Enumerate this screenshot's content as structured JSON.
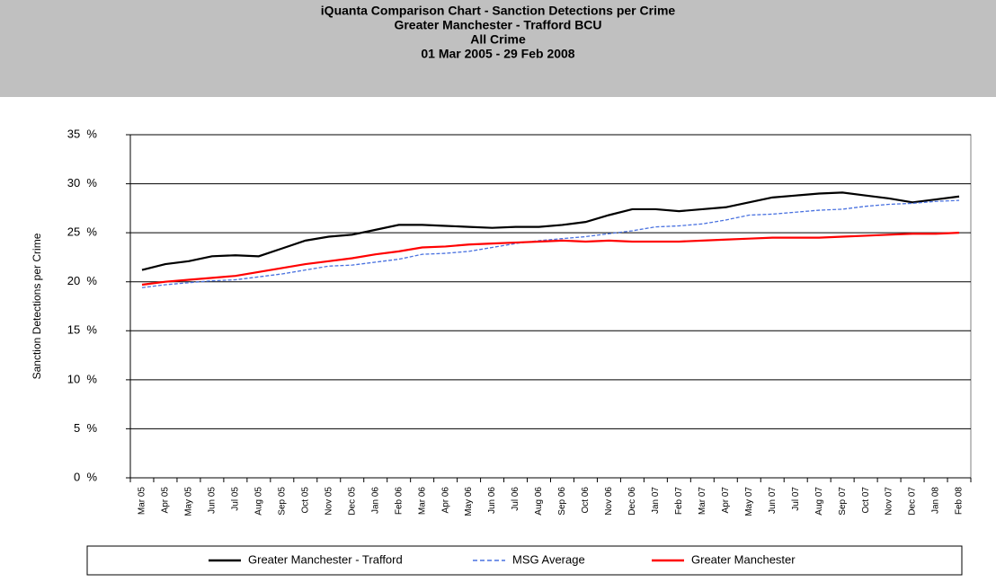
{
  "chart_data": {
    "type": "line",
    "title": "iQuanta Comparison Chart - Sanction Detections per Crime",
    "subtitle": [
      "Greater Manchester - Trafford BCU",
      "All Crime",
      "01 Mar 2005 - 29 Feb 2008"
    ],
    "y_label": "Sanction Detections per Crime",
    "categories": [
      "Mar 05",
      "Apr 05",
      "May 05",
      "Jun 05",
      "Jul 05",
      "Aug 05",
      "Sep 05",
      "Oct 05",
      "Nov 05",
      "Dec 05",
      "Jan 06",
      "Feb 06",
      "Mar 06",
      "Apr 06",
      "May 06",
      "Jun 06",
      "Jul 06",
      "Aug 06",
      "Sep 06",
      "Oct 06",
      "Nov 06",
      "Dec 06",
      "Jan 07",
      "Feb 07",
      "Mar 07",
      "Apr 07",
      "May 07",
      "Jun 07",
      "Jul 07",
      "Aug 07",
      "Sep 07",
      "Oct 07",
      "Nov 07",
      "Dec 07",
      "Jan 08",
      "Feb 08"
    ],
    "series": [
      {
        "name": "Greater Manchester - Trafford",
        "color": "#000000",
        "line_style": "solid",
        "values": [
          21.2,
          21.8,
          22.1,
          22.6,
          22.7,
          22.6,
          23.4,
          24.2,
          24.6,
          24.8,
          25.3,
          25.8,
          25.8,
          25.7,
          25.6,
          25.5,
          25.6,
          25.6,
          25.8,
          26.1,
          26.8,
          27.4,
          27.4,
          27.2,
          27.4,
          27.6,
          28.1,
          28.6,
          28.8,
          29.0,
          29.1,
          28.8,
          28.5,
          28.1,
          28.4,
          28.7
        ]
      },
      {
        "name": "MSG Average",
        "color": "#4a72e0",
        "line_style": "dashed",
        "values": [
          19.4,
          19.7,
          19.9,
          20.1,
          20.2,
          20.5,
          20.8,
          21.2,
          21.6,
          21.7,
          22.0,
          22.3,
          22.8,
          22.9,
          23.1,
          23.5,
          23.9,
          24.2,
          24.4,
          24.6,
          24.9,
          25.2,
          25.6,
          25.7,
          25.9,
          26.3,
          26.8,
          26.9,
          27.1,
          27.3,
          27.4,
          27.7,
          27.9,
          28.0,
          28.2,
          28.3
        ]
      },
      {
        "name": "Greater Manchester",
        "color": "#ff0000",
        "line_style": "solid",
        "values": [
          19.7,
          20.0,
          20.2,
          20.4,
          20.6,
          21.0,
          21.4,
          21.8,
          22.1,
          22.4,
          22.8,
          23.1,
          23.5,
          23.6,
          23.8,
          23.9,
          24.0,
          24.1,
          24.2,
          24.1,
          24.2,
          24.1,
          24.1,
          24.1,
          24.2,
          24.3,
          24.4,
          24.5,
          24.5,
          24.5,
          24.6,
          24.7,
          24.8,
          24.9,
          24.9,
          25.0
        ]
      }
    ],
    "ylim": [
      0,
      35
    ],
    "yticks": [
      {
        "value": 0,
        "label": "0  %"
      },
      {
        "value": 5,
        "label": "5  %"
      },
      {
        "value": 10,
        "label": "10  %"
      },
      {
        "value": 15,
        "label": "15  %"
      },
      {
        "value": 20,
        "label": "20  %"
      },
      {
        "value": 25,
        "label": "25  %"
      },
      {
        "value": 30,
        "label": "30  %"
      },
      {
        "value": 35,
        "label": "35  %"
      }
    ],
    "grid": true,
    "legend": "bottom"
  }
}
